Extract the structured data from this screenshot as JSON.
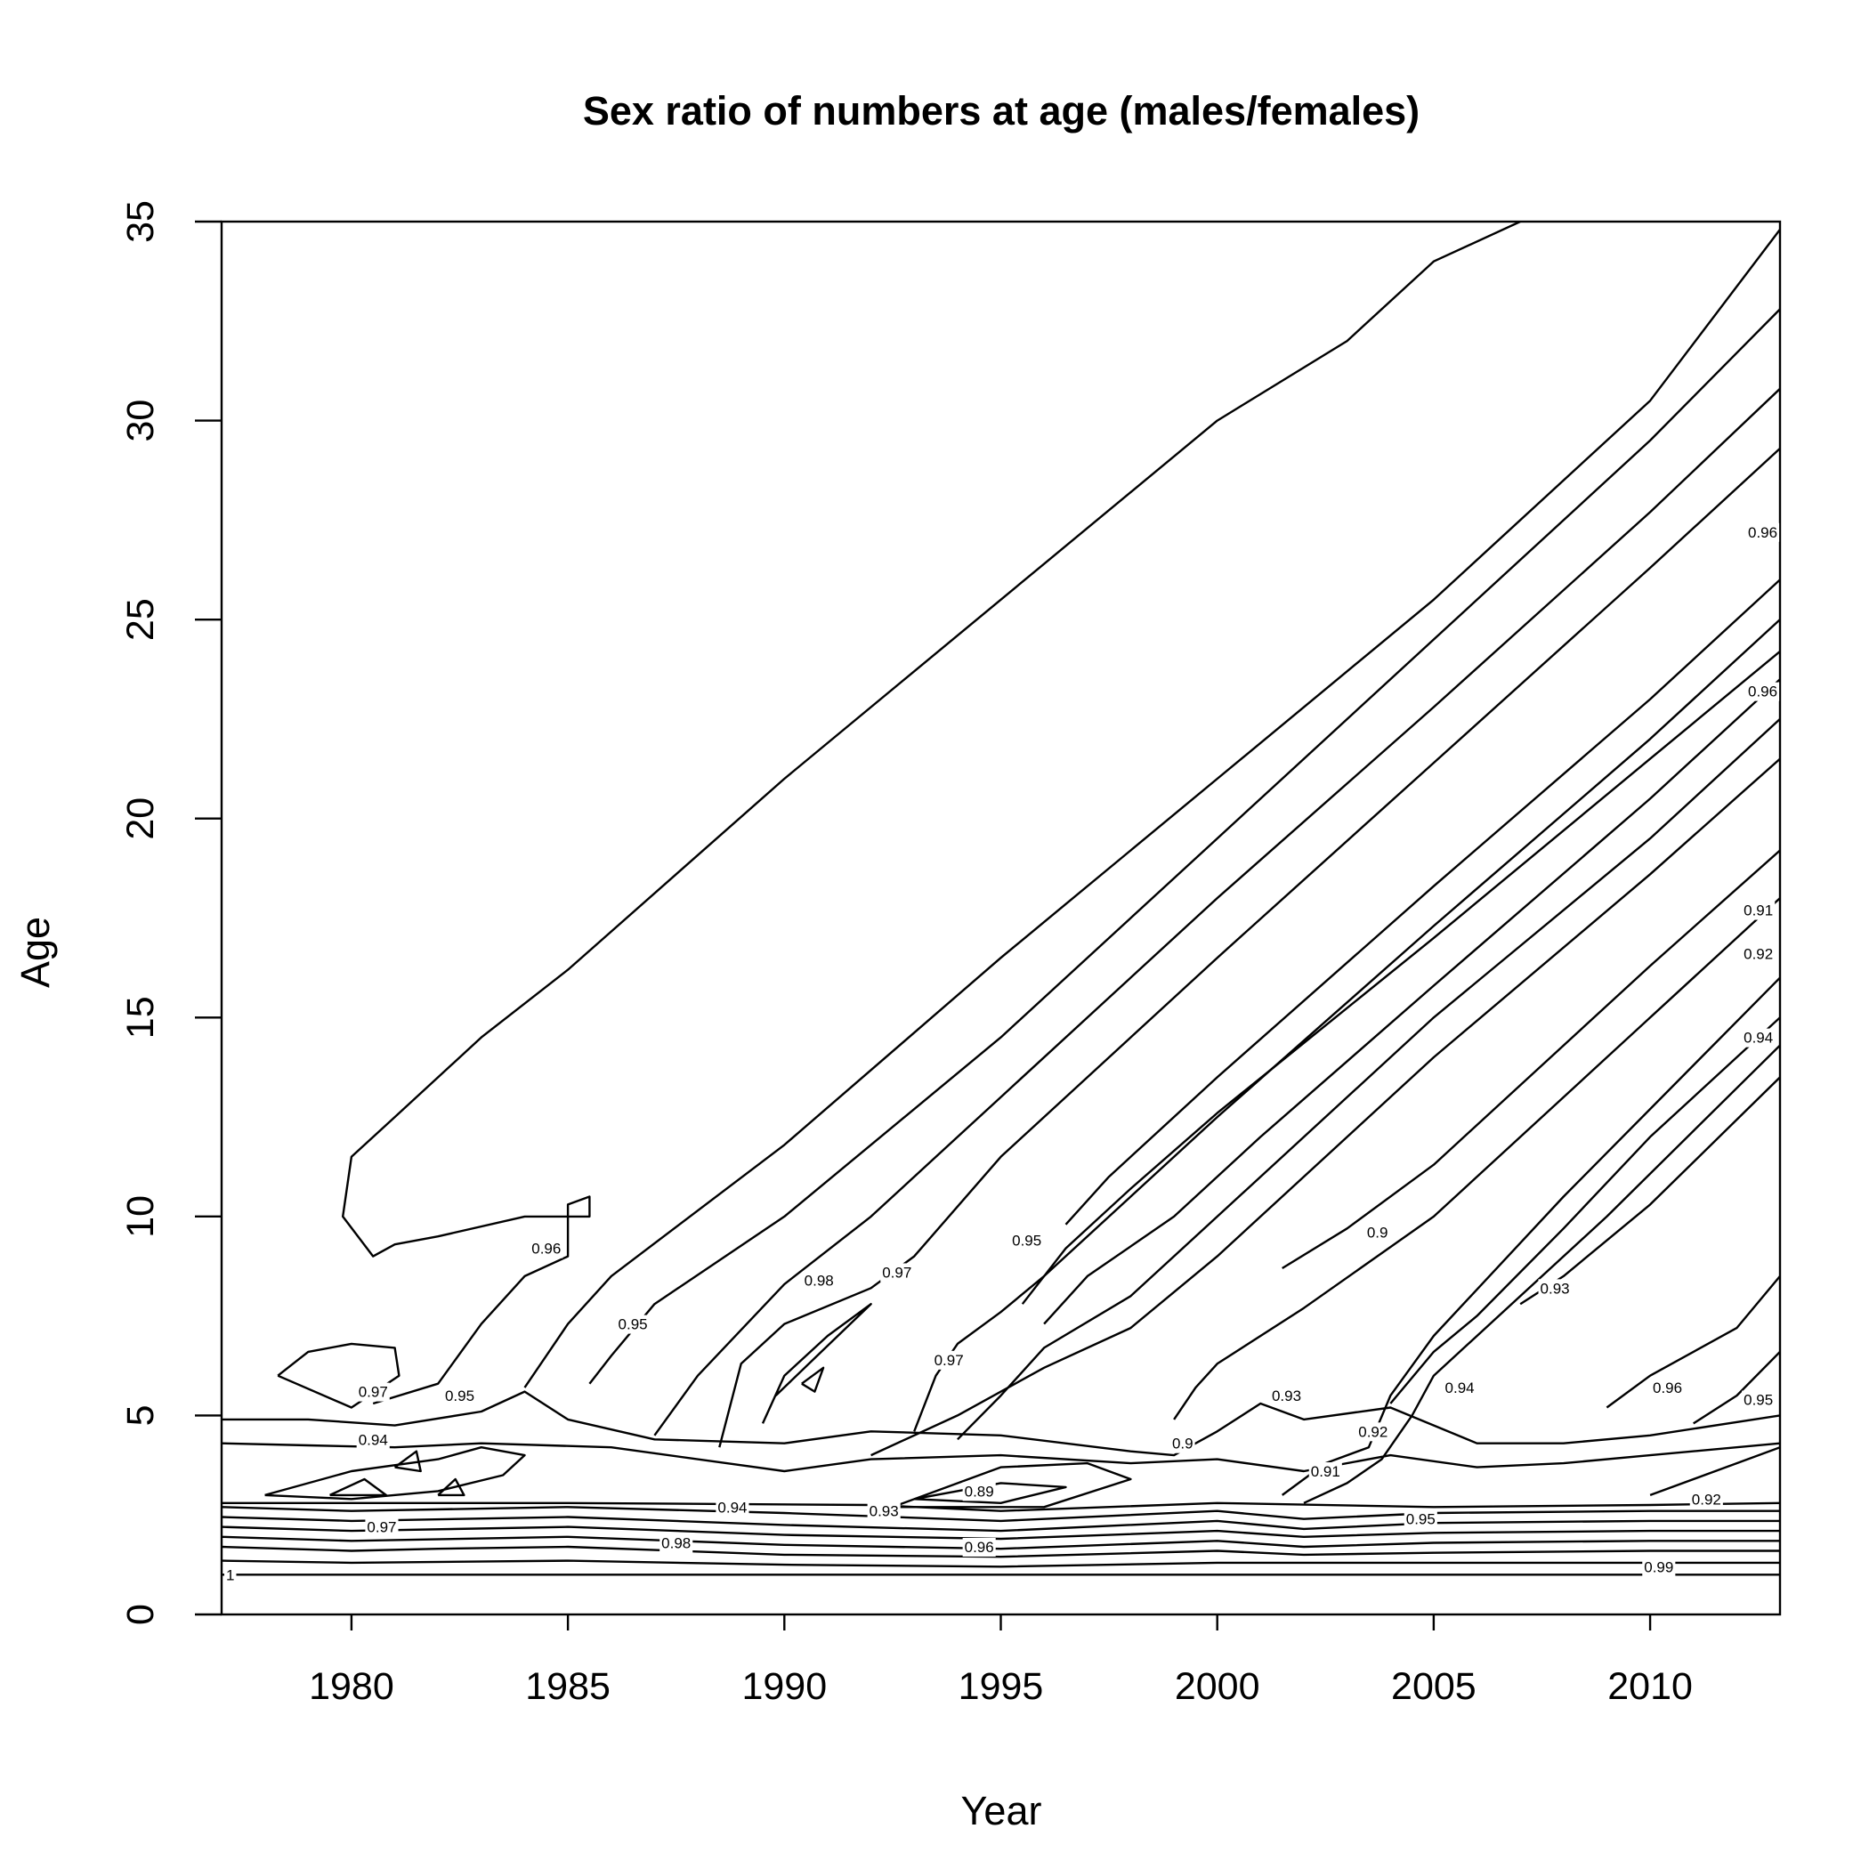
{
  "chart_data": {
    "type": "contour",
    "title": "Sex ratio of numbers at age (males/females)",
    "xlabel": "Year",
    "ylabel": "Age",
    "xlim": [
      1977,
      2013
    ],
    "ylim": [
      0,
      35
    ],
    "xticks": [
      1980,
      1985,
      1990,
      1995,
      2000,
      2005,
      2010
    ],
    "yticks": [
      0,
      5,
      10,
      15,
      20,
      25,
      30,
      35
    ],
    "grid": false,
    "legend": "none",
    "contour_labels": [
      {
        "text": "1",
        "x": 1977.2,
        "y": 1.0
      },
      {
        "text": "0.99",
        "x": 2010.2,
        "y": 1.2
      },
      {
        "text": "0.98",
        "x": 1987.5,
        "y": 1.8
      },
      {
        "text": "0.97",
        "x": 1980.7,
        "y": 2.2
      },
      {
        "text": "0.96",
        "x": 1994.5,
        "y": 1.7
      },
      {
        "text": "0.95",
        "x": 2004.7,
        "y": 2.4
      },
      {
        "text": "0.94",
        "x": 1988.8,
        "y": 2.7
      },
      {
        "text": "0.93",
        "x": 1992.3,
        "y": 2.6
      },
      {
        "text": "0.92",
        "x": 2011.3,
        "y": 2.9
      },
      {
        "text": "0.89",
        "x": 1994.5,
        "y": 3.1
      },
      {
        "text": "0.9",
        "x": 1999.2,
        "y": 4.3
      },
      {
        "text": "0.91",
        "x": 2002.5,
        "y": 3.6
      },
      {
        "text": "0.92",
        "x": 2003.6,
        "y": 4.6
      },
      {
        "text": "0.93",
        "x": 2001.6,
        "y": 5.5
      },
      {
        "text": "0.94",
        "x": 2005.6,
        "y": 5.7
      },
      {
        "text": "0.94",
        "x": 1980.5,
        "y": 4.4
      },
      {
        "text": "0.97",
        "x": 1980.5,
        "y": 5.6
      },
      {
        "text": "0.95",
        "x": 1982.5,
        "y": 5.5
      },
      {
        "text": "0.96",
        "x": 1984.5,
        "y": 9.2
      },
      {
        "text": "0.95",
        "x": 1986.5,
        "y": 7.3
      },
      {
        "text": "0.98",
        "x": 1990.8,
        "y": 8.4
      },
      {
        "text": "0.97",
        "x": 1992.6,
        "y": 8.6
      },
      {
        "text": "0.97",
        "x": 1993.8,
        "y": 6.4
      },
      {
        "text": "0.95",
        "x": 1995.6,
        "y": 9.4
      },
      {
        "text": "0.9",
        "x": 2003.7,
        "y": 9.6
      },
      {
        "text": "0.93",
        "x": 2007.8,
        "y": 8.2
      },
      {
        "text": "0.96",
        "x": 2010.4,
        "y": 5.7
      },
      {
        "text": "0.95",
        "x": 2012.5,
        "y": 5.4
      },
      {
        "text": "0.91",
        "x": 2012.5,
        "y": 17.7
      },
      {
        "text": "0.92",
        "x": 2012.5,
        "y": 16.6
      },
      {
        "text": "0.94",
        "x": 2012.5,
        "y": 14.5
      },
      {
        "text": "0.96",
        "x": 2012.6,
        "y": 23.2
      },
      {
        "text": "0.96",
        "x": 2012.6,
        "y": 27.2
      }
    ],
    "contours": [
      [
        [
          1977,
          1.0
        ],
        [
          2013,
          1.0
        ]
      ],
      [
        [
          1977,
          1.35
        ],
        [
          1980,
          1.3
        ],
        [
          1985,
          1.35
        ],
        [
          1990,
          1.25
        ],
        [
          1995,
          1.2
        ],
        [
          2000,
          1.3
        ],
        [
          2005,
          1.3
        ],
        [
          2010,
          1.3
        ],
        [
          2013,
          1.3
        ]
      ],
      [
        [
          1977,
          1.7
        ],
        [
          1980,
          1.6
        ],
        [
          1982,
          1.65
        ],
        [
          1985,
          1.7
        ],
        [
          1990,
          1.5
        ],
        [
          1995,
          1.45
        ],
        [
          2000,
          1.6
        ],
        [
          2002,
          1.5
        ],
        [
          2005,
          1.55
        ],
        [
          2010,
          1.6
        ],
        [
          2013,
          1.6
        ]
      ],
      [
        [
          1977,
          1.95
        ],
        [
          1980,
          1.85
        ],
        [
          1985,
          1.95
        ],
        [
          1990,
          1.75
        ],
        [
          1995,
          1.65
        ],
        [
          2000,
          1.85
        ],
        [
          2002,
          1.7
        ],
        [
          2005,
          1.8
        ],
        [
          2010,
          1.85
        ],
        [
          2013,
          1.85
        ]
      ],
      [
        [
          1977,
          2.2
        ],
        [
          1980,
          2.1
        ],
        [
          1985,
          2.2
        ],
        [
          1990,
          2.0
        ],
        [
          1995,
          1.9
        ],
        [
          2000,
          2.1
        ],
        [
          2002,
          1.95
        ],
        [
          2005,
          2.05
        ],
        [
          2010,
          2.1
        ],
        [
          2013,
          2.1
        ]
      ],
      [
        [
          1977,
          2.45
        ],
        [
          1980,
          2.35
        ],
        [
          1985,
          2.45
        ],
        [
          1990,
          2.25
        ],
        [
          1995,
          2.1
        ],
        [
          2000,
          2.35
        ],
        [
          2002,
          2.15
        ],
        [
          2005,
          2.3
        ],
        [
          2010,
          2.35
        ],
        [
          2013,
          2.35
        ]
      ],
      [
        [
          1977,
          2.7
        ],
        [
          1980,
          2.6
        ],
        [
          1985,
          2.7
        ],
        [
          1990,
          2.55
        ],
        [
          1995,
          2.35
        ],
        [
          2000,
          2.6
        ],
        [
          2002,
          2.4
        ],
        [
          2005,
          2.55
        ],
        [
          2010,
          2.6
        ],
        [
          2013,
          2.6
        ]
      ],
      [
        [
          1977,
          2.8
        ],
        [
          1985,
          2.8
        ],
        [
          1992,
          2.75
        ],
        [
          1995,
          2.6
        ],
        [
          2000,
          2.8
        ],
        [
          2005,
          2.7
        ],
        [
          2010,
          2.75
        ],
        [
          2013,
          2.8
        ]
      ],
      [
        [
          1977,
          4.9
        ],
        [
          1979,
          4.9
        ],
        [
          1981,
          4.75
        ],
        [
          1983,
          5.1
        ],
        [
          1984,
          5.6
        ],
        [
          1985,
          4.9
        ],
        [
          1987,
          4.4
        ],
        [
          1990,
          4.3
        ],
        [
          1992,
          4.6
        ],
        [
          1995,
          4.5
        ],
        [
          1998,
          4.1
        ],
        [
          1999,
          4.0
        ],
        [
          2000,
          4.6
        ],
        [
          2001,
          5.3
        ],
        [
          2002,
          4.9
        ],
        [
          2004,
          5.2
        ],
        [
          2006,
          4.3
        ],
        [
          2008,
          4.3
        ],
        [
          2010,
          4.5
        ],
        [
          2013,
          5.0
        ]
      ],
      [
        [
          1977,
          4.3
        ],
        [
          1979,
          4.25
        ],
        [
          1981,
          4.2
        ],
        [
          1983,
          4.3
        ],
        [
          1986,
          4.2
        ],
        [
          1990,
          3.6
        ],
        [
          1992,
          3.9
        ],
        [
          1995,
          4.0
        ],
        [
          1998,
          3.8
        ],
        [
          2000,
          3.9
        ],
        [
          2002,
          3.6
        ],
        [
          2004,
          4.0
        ],
        [
          2006,
          3.7
        ],
        [
          2008,
          3.8
        ],
        [
          2010,
          4.0
        ],
        [
          2013,
          4.3
        ]
      ],
      [
        [
          1978,
          3.0
        ],
        [
          1980,
          3.6
        ],
        [
          1982,
          3.9
        ],
        [
          1983,
          4.2
        ],
        [
          1984,
          4.0
        ],
        [
          1983.5,
          3.5
        ],
        [
          1982,
          3.1
        ],
        [
          1980,
          2.9
        ],
        [
          1978,
          3.0
        ]
      ],
      [
        [
          1979.5,
          3.0
        ],
        [
          1980.3,
          3.4
        ],
        [
          1980.8,
          3.0
        ],
        [
          1979.5,
          3.0
        ]
      ],
      [
        [
          1981,
          3.7
        ],
        [
          1981.5,
          4.1
        ],
        [
          1981.6,
          3.6
        ],
        [
          1981,
          3.7
        ]
      ],
      [
        [
          1982,
          3.0
        ],
        [
          1982.4,
          3.4
        ],
        [
          1982.6,
          3.0
        ],
        [
          1982,
          3.0
        ]
      ],
      [
        [
          1978.3,
          6.0
        ],
        [
          1979,
          6.6
        ],
        [
          1980,
          6.8
        ],
        [
          1981,
          6.7
        ],
        [
          1981.1,
          6.0
        ],
        [
          1980,
          5.2
        ],
        [
          1978.3,
          6.0
        ]
      ],
      [
        [
          1980.5,
          5.3
        ],
        [
          1982,
          5.8
        ],
        [
          1983,
          7.3
        ],
        [
          1984,
          8.5
        ],
        [
          1985,
          9.0
        ],
        [
          1985,
          10.3
        ],
        [
          1985.5,
          10.5
        ],
        [
          1985.5,
          10.0
        ],
        [
          1984,
          10.0
        ],
        [
          1982,
          9.5
        ],
        [
          1981,
          9.3
        ],
        [
          1980.5,
          9.0
        ],
        [
          1979.8,
          10.0
        ],
        [
          1980,
          11.5
        ],
        [
          1981,
          12.5
        ],
        [
          1982,
          13.5
        ],
        [
          1983,
          14.5
        ],
        [
          1985,
          16.2
        ],
        [
          1990,
          21.0
        ],
        [
          1995,
          25.5
        ],
        [
          2000,
          30.0
        ],
        [
          2003,
          32.0
        ],
        [
          2005,
          34.0
        ],
        [
          2007,
          35.0
        ]
      ],
      [
        [
          1984,
          5.7
        ],
        [
          1985,
          7.3
        ],
        [
          1986,
          8.5
        ],
        [
          1990,
          11.8
        ],
        [
          1995,
          16.5
        ],
        [
          2000,
          21.0
        ],
        [
          2005,
          25.5
        ],
        [
          2010,
          30.5
        ],
        [
          2013,
          34.8
        ]
      ],
      [
        [
          1985.5,
          5.8
        ],
        [
          1986,
          6.5
        ],
        [
          1987,
          7.8
        ],
        [
          1990,
          10.0
        ],
        [
          1995,
          14.5
        ],
        [
          2000,
          19.5
        ],
        [
          2005,
          24.5
        ],
        [
          2010,
          29.5
        ],
        [
          2013,
          32.8
        ]
      ],
      [
        [
          1987,
          4.5
        ],
        [
          1988,
          6.0
        ],
        [
          1990,
          8.3
        ],
        [
          1992,
          10.0
        ],
        [
          1995,
          13.0
        ],
        [
          2000,
          18.0
        ],
        [
          2005,
          22.8
        ],
        [
          2010,
          27.7
        ],
        [
          2013,
          30.8
        ]
      ],
      [
        [
          1988.5,
          4.2
        ],
        [
          1989,
          6.3
        ],
        [
          1990,
          7.3
        ],
        [
          1992,
          8.2
        ],
        [
          1993,
          9.0
        ],
        [
          1995,
          11.5
        ],
        [
          2000,
          16.5
        ],
        [
          2005,
          21.4
        ],
        [
          2010,
          26.3
        ],
        [
          2013,
          29.3
        ]
      ],
      [
        [
          1989.5,
          4.8
        ],
        [
          1990,
          6.0
        ],
        [
          1991,
          7.0
        ],
        [
          1992,
          7.8
        ],
        [
          1989.8,
          5.5
        ]
      ],
      [
        [
          1990.4,
          5.8
        ],
        [
          1990.9,
          6.2
        ],
        [
          1990.7,
          5.6
        ],
        [
          1990.4,
          5.8
        ]
      ],
      [
        [
          1993,
          4.6
        ],
        [
          1993.5,
          6.0
        ],
        [
          1994,
          6.8
        ],
        [
          1995,
          7.6
        ],
        [
          1996,
          8.5
        ],
        [
          2000,
          12.5
        ],
        [
          2005,
          17.3
        ],
        [
          2010,
          22.0
        ],
        [
          2013,
          25.0
        ]
      ],
      [
        [
          1994,
          4.4
        ],
        [
          1995,
          5.5
        ],
        [
          1996,
          6.7
        ],
        [
          1998,
          8.0
        ],
        [
          2000,
          10.0
        ],
        [
          2005,
          15.0
        ],
        [
          2010,
          19.5
        ],
        [
          2013,
          22.5
        ]
      ],
      [
        [
          1992,
          4.0
        ],
        [
          1994,
          5.0
        ],
        [
          1996,
          6.2
        ],
        [
          1998,
          7.2
        ],
        [
          2000,
          9.0
        ],
        [
          2005,
          14.0
        ],
        [
          2010,
          18.6
        ],
        [
          2013,
          21.5
        ]
      ],
      [
        [
          1996,
          7.3
        ],
        [
          1997,
          8.5
        ],
        [
          1999,
          10.0
        ],
        [
          2001,
          12.0
        ],
        [
          2005,
          15.8
        ],
        [
          2010,
          20.5
        ],
        [
          2013,
          23.5
        ]
      ],
      [
        [
          1995.5,
          7.8
        ],
        [
          1996.5,
          9.2
        ],
        [
          1998,
          10.7
        ],
        [
          2000,
          12.6
        ],
        [
          2005,
          17.0
        ],
        [
          2010,
          21.5
        ],
        [
          2013,
          24.2
        ]
      ],
      [
        [
          1996.5,
          9.8
        ],
        [
          1997.5,
          11.0
        ],
        [
          2000,
          13.5
        ],
        [
          2005,
          18.3
        ],
        [
          2010,
          23.0
        ],
        [
          2013,
          26.0
        ]
      ],
      [
        [
          2001.5,
          8.7
        ],
        [
          2003,
          9.7
        ],
        [
          2005,
          11.3
        ],
        [
          2010,
          16.3
        ],
        [
          2013,
          19.2
        ]
      ],
      [
        [
          2004,
          5.3
        ],
        [
          2005,
          6.6
        ],
        [
          2006,
          7.5
        ],
        [
          2008,
          9.7
        ],
        [
          2010,
          12.0
        ],
        [
          2013,
          15.0
        ]
      ],
      [
        [
          2007,
          7.8
        ],
        [
          2008,
          8.5
        ],
        [
          2010,
          10.3
        ],
        [
          2013,
          13.5
        ]
      ],
      [
        [
          2009,
          5.2
        ],
        [
          2010,
          6.0
        ],
        [
          2012,
          7.2
        ],
        [
          2013,
          8.5
        ]
      ],
      [
        [
          2011,
          4.8
        ],
        [
          2012,
          5.5
        ],
        [
          2013,
          6.6
        ]
      ],
      [
        [
          2010,
          3.0
        ],
        [
          2012,
          3.8
        ],
        [
          2013,
          4.2
        ]
      ],
      [
        [
          1999,
          4.9
        ],
        [
          1999.5,
          5.7
        ],
        [
          2000,
          6.3
        ],
        [
          2002,
          7.7
        ],
        [
          2005,
          10.0
        ],
        [
          2010,
          15.0
        ],
        [
          2013,
          18.0
        ]
      ],
      [
        [
          2001.5,
          3.0
        ],
        [
          2002.5,
          3.8
        ],
        [
          2003.5,
          4.2
        ],
        [
          2004,
          5.5
        ],
        [
          2005,
          7.0
        ],
        [
          2008,
          10.5
        ],
        [
          2010,
          12.7
        ],
        [
          2013,
          16.0
        ]
      ],
      [
        [
          2002,
          2.8
        ],
        [
          2003,
          3.3
        ],
        [
          2003.8,
          3.9
        ],
        [
          2004.5,
          5.0
        ],
        [
          2005,
          6.0
        ],
        [
          2009,
          10.0
        ],
        [
          2013,
          14.3
        ]
      ],
      [
        [
          1993,
          2.9
        ],
        [
          1995,
          3.3
        ],
        [
          1996.5,
          3.2
        ],
        [
          1995,
          2.8
        ],
        [
          1993,
          2.9
        ]
      ],
      [
        [
          1992.5,
          2.7
        ],
        [
          1995,
          3.7
        ],
        [
          1997,
          3.8
        ],
        [
          1998,
          3.4
        ],
        [
          1996,
          2.7
        ],
        [
          1992.5,
          2.7
        ]
      ]
    ]
  }
}
